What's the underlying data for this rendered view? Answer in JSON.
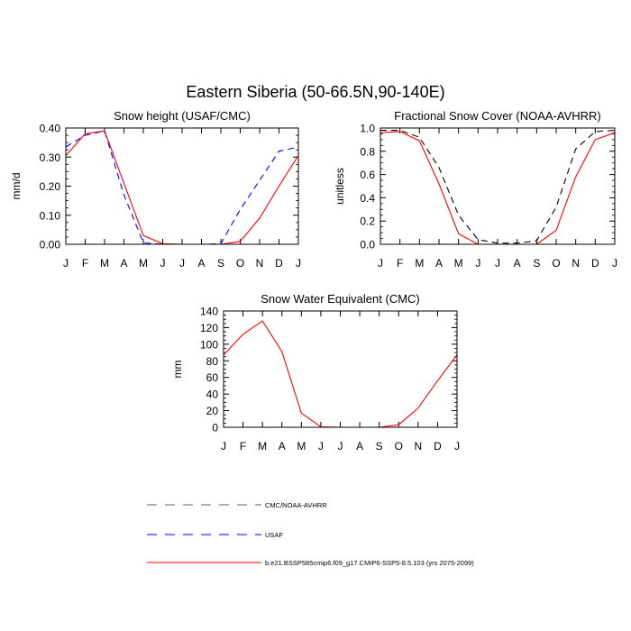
{
  "figure": {
    "title": "Eastern Siberia (50-66.5N,90-140E)"
  },
  "legend": {
    "placement": "bottom-center",
    "entries": [
      {
        "label": "CMC/NOAA-AVHRR",
        "color": "#000000",
        "dash": "dashed"
      },
      {
        "label": "USAF",
        "color": "#0000ff",
        "dash": "dashed"
      },
      {
        "label": "b.e21.BSSP585cmip6.f09_g17.CMIP6-SSP5-8.5.103 (yrs 2075-2099)",
        "color": "#ff0000",
        "dash": "solid"
      }
    ]
  },
  "chart_data": [
    {
      "type": "line",
      "title": "Snow height (USAF/CMC)",
      "xlabel": "",
      "ylabel": "mm/d",
      "categories": [
        "J",
        "F",
        "M",
        "A",
        "M",
        "J",
        "J",
        "A",
        "S",
        "O",
        "N",
        "D",
        "J"
      ],
      "ylim": [
        0,
        0.4
      ],
      "yticks": [
        0,
        0.1,
        0.2,
        0.3,
        0.4
      ],
      "ytick_labels": [
        "0.00",
        "0.10",
        "0.20",
        "0.30",
        "0.40"
      ],
      "grid": false,
      "series": [
        {
          "name": "CMC/NOAA-AVHRR",
          "color": "#000000",
          "dash": "dashed",
          "values": [
            0,
            0,
            0,
            0,
            0,
            0,
            0,
            0,
            0,
            0,
            0,
            0,
            0
          ]
        },
        {
          "name": "USAF",
          "color": "#0000ff",
          "dash": "dashed",
          "values": [
            0.335,
            0.375,
            0.39,
            0.17,
            0.005,
            0.0,
            0.0,
            0.0,
            0.002,
            0.12,
            0.22,
            0.32,
            0.335
          ]
        },
        {
          "name": "b.e21.BSSP585cmip6.f09_g17.CMIP6-SSP5-8.5.103 (yrs 2075-2099)",
          "color": "#ff0000",
          "dash": "solid",
          "values": [
            0.305,
            0.38,
            0.39,
            0.21,
            0.03,
            0.002,
            0.0,
            0.0,
            0.0,
            0.01,
            0.09,
            0.2,
            0.305
          ]
        }
      ]
    },
    {
      "type": "line",
      "title": "Fractional Snow Cover (NOAA-AVHRR)",
      "xlabel": "",
      "ylabel": "unitless",
      "categories": [
        "J",
        "F",
        "M",
        "A",
        "M",
        "J",
        "J",
        "A",
        "S",
        "O",
        "N",
        "D",
        "J"
      ],
      "ylim": [
        0,
        1.0
      ],
      "yticks": [
        0,
        0.2,
        0.4,
        0.6,
        0.8,
        1.0
      ],
      "ytick_labels": [
        "0.0",
        "0.2",
        "0.4",
        "0.6",
        "0.8",
        "1.0"
      ],
      "grid": false,
      "series": [
        {
          "name": "CMC/NOAA-AVHRR",
          "color": "#000000",
          "dash": "dashed",
          "values": [
            0.98,
            0.98,
            0.92,
            0.66,
            0.25,
            0.04,
            0.01,
            0.01,
            0.03,
            0.32,
            0.82,
            0.97,
            0.98
          ]
        },
        {
          "name": "b.e21.BSSP585cmip6.f09_g17.CMIP6-SSP5-8.5.103 (yrs 2075-2099)",
          "color": "#ff0000",
          "dash": "solid",
          "values": [
            0.96,
            0.97,
            0.89,
            0.52,
            0.09,
            0.0,
            0.0,
            0.0,
            0.0,
            0.12,
            0.58,
            0.9,
            0.96
          ]
        }
      ]
    },
    {
      "type": "line",
      "title": "Snow Water Equivalent (CMC)",
      "xlabel": "",
      "ylabel": "mm",
      "categories": [
        "J",
        "F",
        "M",
        "A",
        "M",
        "J",
        "J",
        "A",
        "S",
        "O",
        "N",
        "D",
        "J"
      ],
      "ylim": [
        0,
        140
      ],
      "yticks": [
        0,
        20,
        40,
        60,
        80,
        100,
        120,
        140
      ],
      "ytick_labels": [
        "0",
        "20",
        "40",
        "60",
        "80",
        "100",
        "120",
        "140"
      ],
      "grid": false,
      "series": [
        {
          "name": "CMC/NOAA-AVHRR",
          "color": "#000000",
          "dash": "dashed",
          "values": [
            0,
            0,
            0,
            0,
            0,
            0,
            0,
            0,
            0,
            0,
            0,
            0,
            0
          ]
        },
        {
          "name": "b.e21.BSSP585cmip6.f09_g17.CMIP6-SSP5-8.5.103 (yrs 2075-2099)",
          "color": "#ff0000",
          "dash": "solid",
          "values": [
            87,
            112,
            128,
            91,
            17,
            0.5,
            0,
            0,
            0,
            3,
            23,
            56,
            87
          ]
        }
      ]
    }
  ]
}
